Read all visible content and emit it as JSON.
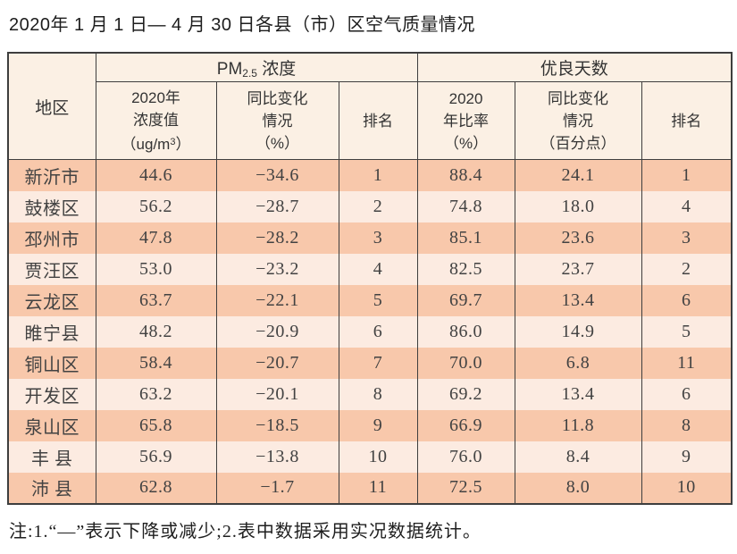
{
  "page": {
    "title": "2020年 1 月 1 日— 4 月 30 日各县（市）区空气质量情况",
    "note": "注:1.“—”表示下降或减少;2.表中数据采用实况数据统计。"
  },
  "colors": {
    "row_salmon": "#f8c8ab",
    "row_light_pink": "#fcebe1",
    "header_cream": "#fbf0e4",
    "border": "#3e3e3e"
  },
  "table": {
    "header": {
      "region": "地区",
      "pm_group": {
        "prefix": "PM",
        "sub": "2.5",
        "suffix": " 浓度"
      },
      "good_group": "优良天数",
      "pm_value": {
        "line1": "2020年",
        "line2": "浓度值",
        "line3_pre": "（ug/m",
        "line3_sup": "3",
        "line3_post": "）"
      },
      "pm_change": {
        "line1": "同比变化",
        "line2": "情况",
        "line3": "（%）"
      },
      "pm_rank": "排名",
      "good_rate": {
        "line1": "2020",
        "line2": "年比率",
        "line3": "（%）"
      },
      "good_change": {
        "line1": "同比变化",
        "line2": "情况",
        "line3": "（百分点）"
      },
      "good_rank": "排名"
    },
    "rows": [
      {
        "region": "新沂市",
        "pm_value": "44.6",
        "pm_change": "−34.6",
        "pm_rank": "1",
        "good_rate": "88.4",
        "good_change": "24.1",
        "good_rank": "1"
      },
      {
        "region": "鼓楼区",
        "pm_value": "56.2",
        "pm_change": "−28.7",
        "pm_rank": "2",
        "good_rate": "74.8",
        "good_change": "18.0",
        "good_rank": "4"
      },
      {
        "region": "邳州市",
        "pm_value": "47.8",
        "pm_change": "−28.2",
        "pm_rank": "3",
        "good_rate": "85.1",
        "good_change": "23.6",
        "good_rank": "3"
      },
      {
        "region": "贾汪区",
        "pm_value": "53.0",
        "pm_change": "−23.2",
        "pm_rank": "4",
        "good_rate": "82.5",
        "good_change": "23.7",
        "good_rank": "2"
      },
      {
        "region": "云龙区",
        "pm_value": "63.7",
        "pm_change": "−22.1",
        "pm_rank": "5",
        "good_rate": "69.7",
        "good_change": "13.4",
        "good_rank": "6"
      },
      {
        "region": "睢宁县",
        "pm_value": "48.2",
        "pm_change": "−20.9",
        "pm_rank": "6",
        "good_rate": "86.0",
        "good_change": "14.9",
        "good_rank": "5"
      },
      {
        "region": "铜山区",
        "pm_value": "58.4",
        "pm_change": "−20.7",
        "pm_rank": "7",
        "good_rate": "70.0",
        "good_change": "6.8",
        "good_rank": "11"
      },
      {
        "region": "开发区",
        "pm_value": "63.2",
        "pm_change": "−20.1",
        "pm_rank": "8",
        "good_rate": "69.2",
        "good_change": "13.4",
        "good_rank": "6"
      },
      {
        "region": "泉山区",
        "pm_value": "65.8",
        "pm_change": "−18.5",
        "pm_rank": "9",
        "good_rate": "66.9",
        "good_change": "11.8",
        "good_rank": "8"
      },
      {
        "region": "丰 县",
        "pm_value": "56.9",
        "pm_change": "−13.8",
        "pm_rank": "10",
        "good_rate": "76.0",
        "good_change": "8.4",
        "good_rank": "9"
      },
      {
        "region": "沛 县",
        "pm_value": "62.8",
        "pm_change": "−1.7",
        "pm_rank": "11",
        "good_rate": "72.5",
        "good_change": "8.0",
        "good_rank": "10"
      }
    ]
  }
}
